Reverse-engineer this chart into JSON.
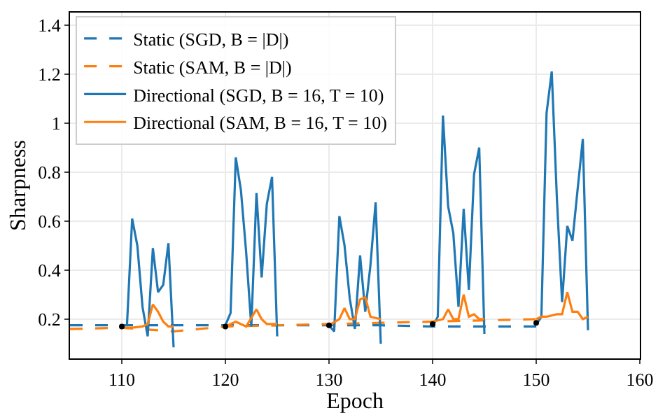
{
  "chart_data": {
    "type": "line",
    "xlabel": "Epoch",
    "ylabel": "Sharpness",
    "xlim": [
      105,
      160
    ],
    "xticks": [
      110,
      120,
      130,
      140,
      150,
      160
    ],
    "ylim": [
      0.04,
      1.45
    ],
    "yticks": [
      0.2,
      0.4,
      0.6,
      0.8,
      1.0,
      1.2,
      1.4
    ],
    "grid": true,
    "legend": "top left",
    "series": [
      {
        "name": "Static (SGD, B = |D|)",
        "color": "#1f77b4",
        "line_style": "dashed",
        "x": [
          105,
          110,
          115,
          120,
          125,
          130,
          135,
          140,
          145,
          150
        ],
        "values": [
          0.175,
          0.175,
          0.175,
          0.175,
          0.175,
          0.175,
          0.175,
          0.17,
          0.17,
          0.17
        ]
      },
      {
        "name": "Static (SAM, B = |D|)",
        "color": "#ff7f0e",
        "line_style": "dashed",
        "x": [
          105,
          110,
          115,
          120,
          125,
          130,
          135,
          140,
          145,
          150
        ],
        "values": [
          0.16,
          0.165,
          0.15,
          0.17,
          0.175,
          0.18,
          0.185,
          0.19,
          0.195,
          0.2
        ]
      },
      {
        "name": "Directional (SGD, B = 16, T = 10)",
        "color": "#1f77b4",
        "line_style": "solid",
        "x": [
          110,
          110.5,
          111,
          111.5,
          112,
          112.5,
          113,
          113.5,
          114,
          114.5,
          115,
          null,
          120,
          120.5,
          121,
          121.5,
          122,
          122.5,
          123,
          123.5,
          124,
          124.5,
          125,
          null,
          130,
          130.5,
          131,
          131.5,
          132,
          132.5,
          133,
          133.5,
          134,
          134.5,
          135,
          null,
          140,
          140.5,
          141,
          141.5,
          142,
          142.5,
          143,
          143.5,
          144,
          144.5,
          145,
          null,
          150,
          150.5,
          151,
          151.5,
          152,
          152.5,
          153,
          153.5,
          154,
          154.5,
          155
        ],
        "values": [
          0.175,
          0.175,
          0.61,
          0.5,
          0.25,
          0.13,
          0.49,
          0.31,
          0.34,
          0.51,
          0.085,
          null,
          0.175,
          0.225,
          0.86,
          0.725,
          0.475,
          0.17,
          0.714,
          0.37,
          0.67,
          0.78,
          0.13,
          null,
          0.175,
          0.15,
          0.62,
          0.5,
          0.285,
          0.16,
          0.46,
          0.23,
          0.42,
          0.676,
          0.1,
          null,
          0.17,
          0.21,
          1.03,
          0.66,
          0.55,
          0.25,
          0.65,
          0.32,
          0.79,
          0.9,
          0.14,
          null,
          0.177,
          0.21,
          1.04,
          1.21,
          0.69,
          0.27,
          0.58,
          0.52,
          0.73,
          0.935,
          0.155
        ]
      },
      {
        "name": "Directional (SAM, B = 16, T = 10)",
        "color": "#ff7f0e",
        "line_style": "solid",
        "x": [
          110,
          111,
          112,
          112.5,
          113,
          113.5,
          114,
          114.5,
          115,
          null,
          120,
          121,
          121.5,
          122,
          123,
          123.5,
          124,
          125,
          null,
          130,
          131,
          131.5,
          132,
          132.5,
          133,
          133.5,
          134,
          135,
          null,
          140,
          141,
          141.5,
          142,
          142.5,
          143,
          143.5,
          144,
          144.5,
          145,
          null,
          150,
          150.5,
          151,
          152,
          152.5,
          153,
          153.5,
          154,
          154.5,
          155
        ],
        "values": [
          0.165,
          0.165,
          0.17,
          0.18,
          0.26,
          0.23,
          0.19,
          0.17,
          0.17,
          null,
          0.17,
          0.19,
          0.18,
          0.17,
          0.24,
          0.2,
          0.18,
          0.18,
          null,
          0.175,
          0.2,
          0.245,
          0.2,
          0.2,
          0.28,
          0.29,
          0.21,
          0.2,
          null,
          0.19,
          0.2,
          0.24,
          0.2,
          0.2,
          0.3,
          0.21,
          0.22,
          0.2,
          0.2,
          null,
          0.2,
          0.21,
          0.21,
          0.22,
          0.22,
          0.31,
          0.23,
          0.23,
          0.2,
          0.21
        ]
      },
      {
        "type": "scatter",
        "color": "#000000",
        "marker": "circle",
        "x": [
          110,
          120,
          130,
          140,
          150
        ],
        "values": [
          0.17,
          0.17,
          0.175,
          0.18,
          0.185
        ]
      }
    ]
  }
}
